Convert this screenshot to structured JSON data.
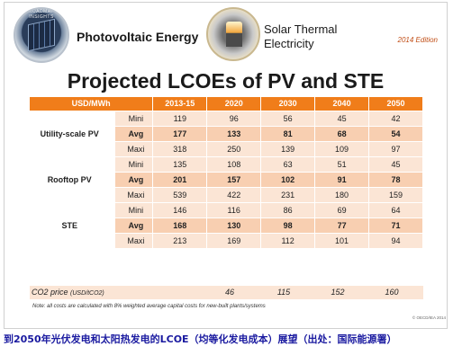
{
  "header": {
    "pv_logo_ring_text": "ROADMAP INSIGHTS",
    "pv_title": "Photovoltaic Energy",
    "ste_title": "Solar Thermal Electricity",
    "edition": "2014 Edition"
  },
  "main_title": "Projected LCOEs of PV and STE",
  "table": {
    "unit_header": "USD/MWh",
    "years": [
      "2013-15",
      "2020",
      "2030",
      "2040",
      "2050"
    ],
    "groups": [
      {
        "name": "Utility-scale PV",
        "rows": [
          {
            "tier": "Mini",
            "values": [
              "119",
              "96",
              "56",
              "45",
              "42"
            ]
          },
          {
            "tier": "Avg",
            "values": [
              "177",
              "133",
              "81",
              "68",
              "54"
            ]
          },
          {
            "tier": "Maxi",
            "values": [
              "318",
              "250",
              "139",
              "109",
              "97"
            ]
          }
        ]
      },
      {
        "name": "Rooftop PV",
        "rows": [
          {
            "tier": "Mini",
            "values": [
              "135",
              "108",
              "63",
              "51",
              "45"
            ]
          },
          {
            "tier": "Avg",
            "values": [
              "201",
              "157",
              "102",
              "91",
              "78"
            ]
          },
          {
            "tier": "Maxi",
            "values": [
              "539",
              "422",
              "231",
              "180",
              "159"
            ]
          }
        ]
      },
      {
        "name": "STE",
        "rows": [
          {
            "tier": "Mini",
            "values": [
              "146",
              "116",
              "86",
              "69",
              "64"
            ]
          },
          {
            "tier": "Avg",
            "values": [
              "168",
              "130",
              "98",
              "77",
              "71"
            ]
          },
          {
            "tier": "Maxi",
            "values": [
              "213",
              "169",
              "112",
              "101",
              "94"
            ]
          }
        ]
      }
    ]
  },
  "co2": {
    "label": "CO2 price",
    "unit": "(USD/tCO2)",
    "values": [
      "",
      "46",
      "115",
      "152",
      "160"
    ]
  },
  "note": "Note: all costs are calculated with 8% weighted average capital costs for new-built plants/systems",
  "copyright": "© OECD/IEA 2014",
  "caption": "到2050年光伏发电和太阳热发电的LCOE（均等化发电成本）展望（出处：国际能源署）",
  "colors": {
    "header_orange": "#f07d1a",
    "row_light": "#fbe5d5",
    "row_dark": "#f8cfb1",
    "caption_blue": "#1a1aa0"
  }
}
